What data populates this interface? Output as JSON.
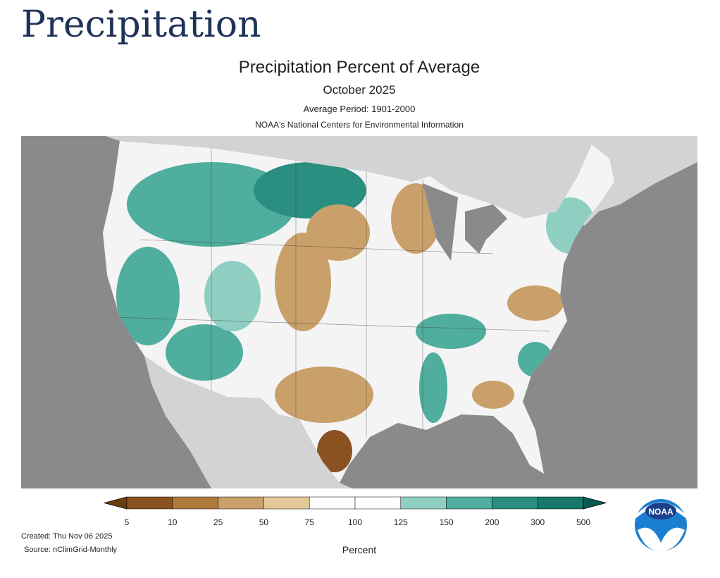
{
  "header": {
    "title": "Precipitation"
  },
  "map": {
    "title": "Precipitation Percent of Average",
    "subtitle": "October 2025",
    "period": "Average Period: 1901-2000",
    "source_org": "NOAA's National Centers for Environmental Information"
  },
  "legend": {
    "ticks": [
      5,
      10,
      25,
      50,
      75,
      100,
      125,
      150,
      200,
      300,
      500
    ],
    "colors": [
      "#6b3e10",
      "#8a5220",
      "#b07a3a",
      "#c9a06a",
      "#e3c898",
      "#ffffff",
      "#ffffff",
      "#8fcfc2",
      "#4fae9e",
      "#2a8f80",
      "#16776a",
      "#0b5a4f"
    ],
    "label": "Percent"
  },
  "footer": {
    "created": "Created: Thu Nov 06 2025",
    "source": "Source: nClimGrid-Monthly"
  },
  "logo": {
    "text": "NOAA"
  }
}
